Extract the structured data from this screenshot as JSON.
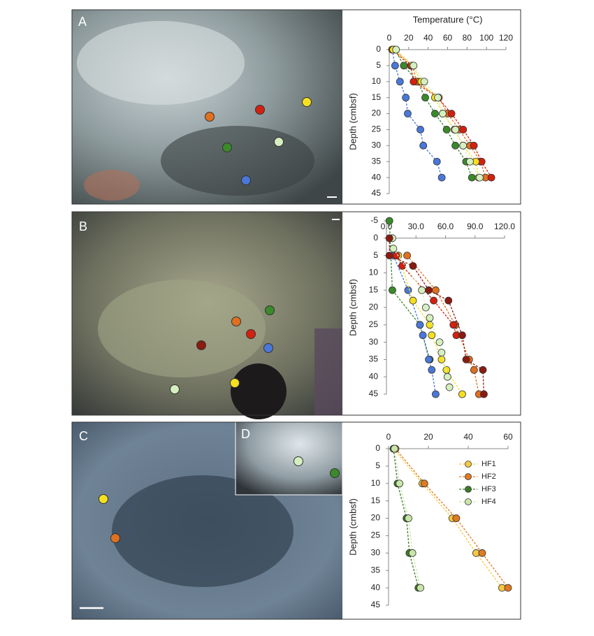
{
  "panel_labels": [
    "A",
    "B",
    "C",
    "D"
  ],
  "chart_data": [
    {
      "type": "line",
      "x_label": "Temperature (°C)",
      "y_label": "Depth (cmbsf)",
      "xlim": [
        0,
        120
      ],
      "xticks": [
        0,
        20,
        40,
        60,
        80,
        100,
        120
      ],
      "ylim": [
        0,
        45
      ],
      "yticks": [
        0,
        5,
        10,
        15,
        20,
        25,
        30,
        35,
        40,
        45
      ],
      "y_reversed": true,
      "series": [
        {
          "color": "#4a78d8",
          "x": [
            3,
            6,
            11,
            17,
            19,
            32,
            35,
            49,
            54
          ],
          "y": [
            0,
            5,
            10,
            15,
            20,
            25,
            30,
            35,
            40
          ]
        },
        {
          "color": "#3a8a2a",
          "x": [
            6,
            15,
            29,
            37,
            47,
            59,
            68,
            79,
            85
          ],
          "y": [
            0,
            5,
            10,
            15,
            20,
            25,
            30,
            35,
            40
          ]
        },
        {
          "color": "#e07020",
          "x": [
            5,
            24,
            28,
            51,
            60,
            72,
            83,
            94,
            99
          ],
          "y": [
            0,
            5,
            10,
            15,
            20,
            25,
            30,
            35,
            40
          ]
        },
        {
          "color": "#d42010",
          "x": [
            3,
            22,
            25,
            50,
            64,
            76,
            87,
            95,
            105
          ],
          "y": [
            0,
            5,
            10,
            15,
            20,
            25,
            30,
            35,
            40
          ]
        },
        {
          "color": "#f5e020",
          "x": [
            4,
            24,
            33,
            47,
            55,
            67,
            76,
            89,
            92
          ],
          "y": [
            0,
            5,
            10,
            15,
            20,
            25,
            30,
            35,
            40
          ]
        },
        {
          "color": "#d6efc0",
          "x": [
            7,
            25,
            36,
            50,
            55,
            68,
            76,
            83,
            93
          ],
          "y": [
            0,
            5,
            10,
            15,
            20,
            25,
            30,
            35,
            40
          ]
        }
      ]
    },
    {
      "type": "line",
      "y_label": "Depth (cmbsf)",
      "xlim": [
        0,
        120
      ],
      "xticks": [
        {
          "value": 0,
          "label": "0.0"
        },
        {
          "value": 30,
          "label": "30.0"
        },
        {
          "value": 60,
          "label": "60.0"
        },
        {
          "value": 90,
          "label": "90.0"
        },
        {
          "value": 120,
          "label": "120.0"
        }
      ],
      "ylim": [
        -5,
        45
      ],
      "yticks": [
        -5,
        0,
        5,
        10,
        15,
        20,
        25,
        30,
        35,
        40,
        45
      ],
      "y_reversed": true,
      "series": [
        {
          "color": "#3a8a2a",
          "x": [
            3,
            6,
            34,
            44
          ],
          "y": [
            -5,
            15,
            25,
            35
          ]
        },
        {
          "color": "#4a78d8",
          "x": [
            7,
            22,
            34,
            37,
            43,
            46,
            50
          ],
          "y": [
            5,
            15,
            25,
            28,
            35,
            38,
            45
          ]
        },
        {
          "color": "#f5e020",
          "x": [
            12,
            27,
            44,
            46,
            56,
            61,
            77
          ],
          "y": [
            5,
            18,
            25,
            28,
            35,
            38,
            45
          ]
        },
        {
          "color": "#e07020",
          "x": [
            21,
            50,
            70,
            84,
            89,
            94
          ],
          "y": [
            5,
            15,
            25,
            35,
            38,
            45
          ]
        },
        {
          "color": "#d42010",
          "x": [
            10,
            16,
            48,
            68,
            71
          ],
          "y": [
            5,
            8,
            18,
            25,
            28
          ]
        },
        {
          "color": "#d6efc0",
          "x": [
            6,
            7,
            36,
            40,
            44,
            54,
            56,
            62,
            64
          ],
          "y": [
            0,
            3,
            15,
            20,
            23,
            30,
            33,
            40,
            43
          ]
        },
        {
          "color": "#8b1a10",
          "x": [
            3,
            3,
            27,
            43,
            63,
            77,
            81,
            98,
            99
          ],
          "y": [
            0,
            5,
            8,
            15,
            18,
            28,
            35,
            38,
            45
          ]
        }
      ]
    },
    {
      "type": "line",
      "y_label": "Depth (cmbsf)",
      "legend": "upper right",
      "xlim": [
        0,
        60
      ],
      "xticks": [
        0,
        20,
        40,
        60
      ],
      "ylim": [
        0,
        45
      ],
      "yticks": [
        0,
        5,
        10,
        15,
        20,
        25,
        30,
        35,
        40,
        45
      ],
      "y_reversed": true,
      "series": [
        {
          "name": "HF1",
          "color": "#f6c842",
          "x": [
            2.5,
            17,
            32,
            44,
            57
          ],
          "y": [
            0,
            10,
            20,
            30,
            40
          ]
        },
        {
          "name": "HF2",
          "color": "#e07a20",
          "x": [
            3.5,
            18,
            34,
            47,
            60
          ],
          "y": [
            0,
            10,
            20,
            30,
            40
          ]
        },
        {
          "name": "HF3",
          "color": "#3d7a28",
          "x": [
            2.5,
            4.5,
            9,
            10.5,
            15
          ],
          "y": [
            0,
            10,
            20,
            30,
            40
          ]
        },
        {
          "name": "HF4",
          "color": "#c8e6a8",
          "x": [
            3,
            5.5,
            10,
            12,
            16
          ],
          "y": [
            0,
            10,
            20,
            30,
            40
          ]
        }
      ]
    }
  ]
}
